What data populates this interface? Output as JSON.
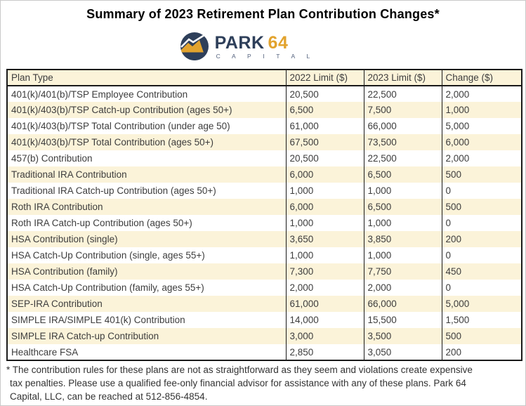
{
  "title": "Summary of 2023 Retirement Plan Contribution Changes*",
  "logo": {
    "name_primary": "PARK",
    "name_accent": "64",
    "subtitle": "C A P I T A L",
    "colors": {
      "navy": "#2E3F5A",
      "gold": "#E2A32E"
    }
  },
  "table": {
    "columns": [
      "Plan Type",
      "2022 Limit ($)",
      "2023 Limit ($)",
      "Change ($)"
    ],
    "rows": [
      [
        "401(k)/401(b)/TSP Employee Contribution",
        "20,500",
        "22,500",
        "2,000"
      ],
      [
        "401(k)/403(b)/TSP Catch-up Contribution (ages 50+)",
        "6,500",
        "7,500",
        "1,000"
      ],
      [
        "401(k)/403(b)/TSP Total Contribution (under age 50)",
        "61,000",
        "66,000",
        "5,000"
      ],
      [
        "401(k)/403(b)/TSP Total Contribution (ages 50+)",
        "67,500",
        "73,500",
        "6,000"
      ],
      [
        "457(b) Contribution",
        "20,500",
        "22,500",
        "2,000"
      ],
      [
        "Traditional IRA Contribution",
        "6,000",
        "6,500",
        "500"
      ],
      [
        "Traditional IRA Catch-up Contribution (ages 50+)",
        "1,000",
        "1,000",
        "0"
      ],
      [
        "Roth IRA Contribution",
        "6,000",
        "6,500",
        "500"
      ],
      [
        "Roth IRA Catch-up Contribution (ages 50+)",
        "1,000",
        "1,000",
        "0"
      ],
      [
        "HSA Contribution (single)",
        "3,650",
        "3,850",
        "200"
      ],
      [
        "HSA Catch-Up Contribution (single, ages 55+)",
        "1,000",
        "1,000",
        "0"
      ],
      [
        "HSA Contribution (family)",
        "7,300",
        "7,750",
        "450"
      ],
      [
        "HSA Catch-Up Contribution (family, ages 55+)",
        "2,000",
        "2,000",
        "0"
      ],
      [
        "SEP-IRA Contribution",
        "61,000",
        "66,000",
        "5,000"
      ],
      [
        "SIMPLE IRA/SIMPLE 401(k) Contribution",
        "14,000",
        "15,500",
        "1,500"
      ],
      [
        "SIMPLE IRA Catch-up Contribution",
        "3,000",
        "3,500",
        "500"
      ],
      [
        "Healthcare FSA",
        "2,850",
        "3,050",
        "200"
      ]
    ],
    "zebra_color": "#FBF3D9",
    "border_color": "#1A1A1A",
    "text_color": "#3D3D3D"
  },
  "footnote": {
    "lines": [
      "* The contribution rules for these plans are not as straightforward as they seem and violations create expensive",
      "tax penalties. Please use a qualified fee-only financial advisor for assistance with any of these plans. Park 64",
      "Capital, LLC, can be reached at 512-856-4854."
    ]
  }
}
